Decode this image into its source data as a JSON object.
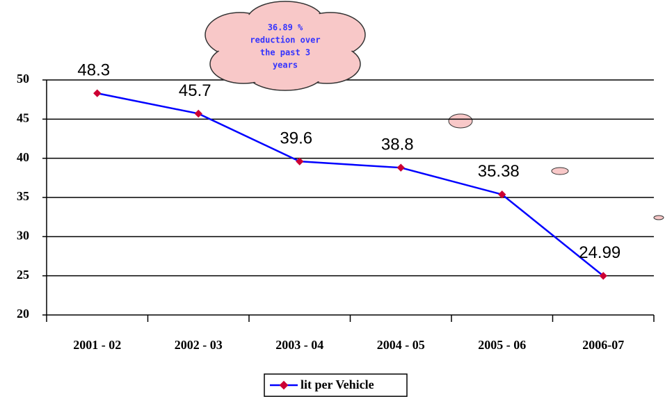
{
  "chart_data": {
    "type": "line",
    "categories": [
      "2001 - 02",
      "2002 - 03",
      "2003 - 04",
      "2004 - 05",
      "2005 - 06",
      "2006-07"
    ],
    "series": [
      {
        "name": "lit per Vehicle",
        "color": "#0000ff",
        "marker_color": "#cc0033",
        "values": [
          48.3,
          45.7,
          39.6,
          38.8,
          35.38,
          24.99
        ]
      }
    ],
    "ylim": [
      20,
      50
    ],
    "yticks": [
      20,
      25,
      30,
      35,
      40,
      45,
      50
    ],
    "grid": true,
    "annotation": [
      "36.89 %",
      "reduction over",
      "the past 3",
      "years"
    ],
    "legend": "bottom"
  }
}
